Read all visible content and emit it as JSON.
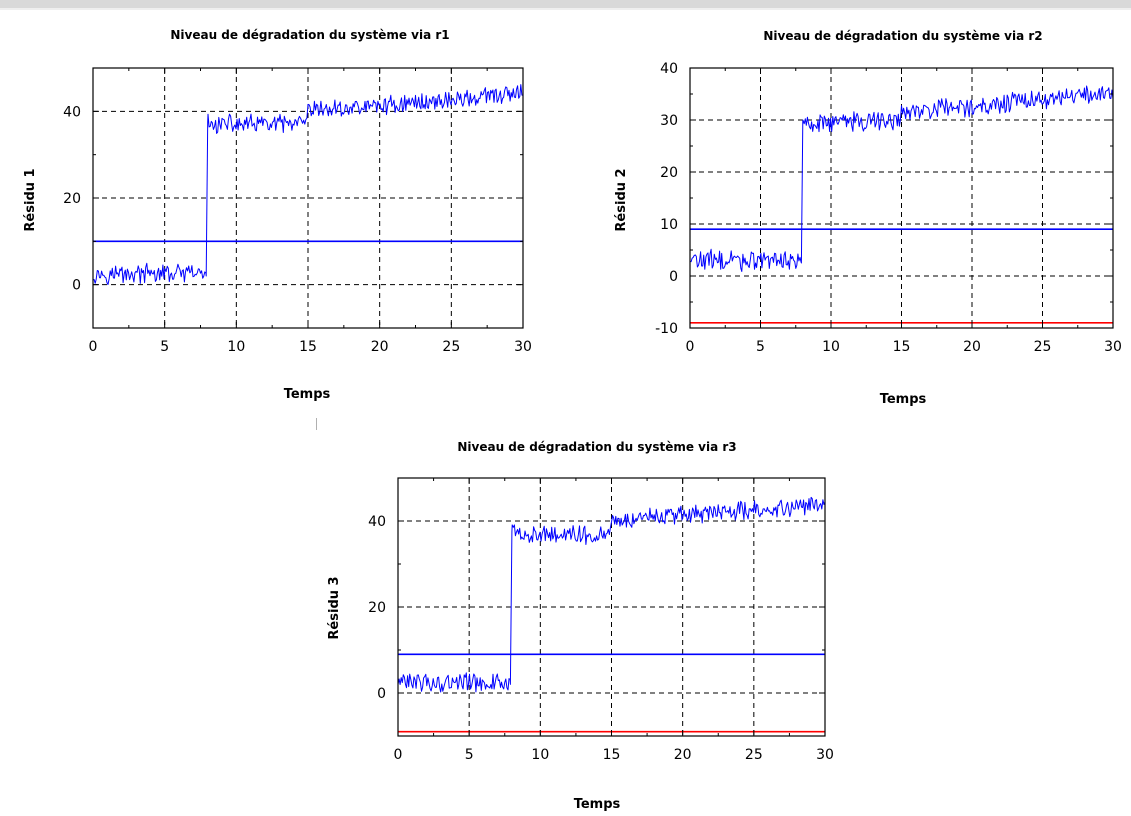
{
  "chart_data": [
    {
      "type": "line",
      "title": "Niveau de dégradation du système via r1",
      "xlabel": "Temps",
      "ylabel": "Résidu 1",
      "xlim": [
        0,
        30
      ],
      "ylim": [
        -10,
        50
      ],
      "xticks": [
        0,
        5,
        10,
        15,
        20,
        25,
        30
      ],
      "yticks": [
        0,
        20,
        40
      ],
      "grid": true,
      "series": [
        {
          "color": "#0000ff",
          "style": "noisy",
          "x": [
            0,
            7.9,
            8.0,
            14.9,
            15.0,
            30
          ],
          "y": [
            2.5,
            2.5,
            37,
            37,
            40,
            44
          ],
          "noise": 1.8
        },
        {
          "color": "#0000ff",
          "style": "threshold",
          "x": [
            0,
            30
          ],
          "y": [
            10,
            10
          ]
        }
      ]
    },
    {
      "type": "line",
      "title": "Niveau de dégradation du système via r2",
      "xlabel": "Temps",
      "ylabel": "Résidu 2",
      "xlim": [
        0,
        30
      ],
      "ylim": [
        -10,
        40
      ],
      "xticks": [
        0,
        5,
        10,
        15,
        20,
        25,
        30
      ],
      "yticks": [
        -10,
        0,
        10,
        20,
        30,
        40
      ],
      "grid": true,
      "series": [
        {
          "color": "#0000ff",
          "style": "noisy",
          "x": [
            0,
            7.9,
            8.0,
            14.9,
            15.0,
            30
          ],
          "y": [
            3,
            3,
            29.5,
            30,
            31.5,
            35
          ],
          "noise": 1.6
        },
        {
          "color": "#0000ff",
          "style": "threshold",
          "x": [
            0,
            30
          ],
          "y": [
            9,
            9
          ]
        },
        {
          "color": "#ff0000",
          "style": "threshold",
          "x": [
            0,
            30
          ],
          "y": [
            -9,
            -9
          ]
        }
      ]
    },
    {
      "type": "line",
      "title": "Niveau de dégradation du système via r3",
      "xlabel": "Temps",
      "ylabel": "Résidu 3",
      "xlim": [
        0,
        30
      ],
      "ylim": [
        -10,
        50
      ],
      "xticks": [
        0,
        5,
        10,
        15,
        20,
        25,
        30
      ],
      "yticks": [
        0,
        20,
        40
      ],
      "grid": true,
      "series": [
        {
          "color": "#0000ff",
          "style": "noisy",
          "x": [
            0,
            7.9,
            8.0,
            14.9,
            15.0,
            30
          ],
          "y": [
            2.5,
            2.5,
            37,
            37,
            40,
            44
          ],
          "noise": 1.8
        },
        {
          "color": "#0000ff",
          "style": "threshold",
          "x": [
            0,
            30
          ],
          "y": [
            9,
            9
          ]
        },
        {
          "color": "#ff0000",
          "style": "threshold",
          "x": [
            0,
            30
          ],
          "y": [
            -9,
            -9
          ]
        }
      ]
    }
  ]
}
